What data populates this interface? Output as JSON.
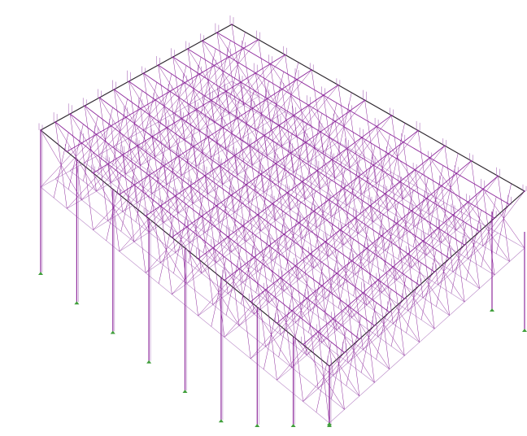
{
  "view": {
    "type": "3d-space-frame-isometric",
    "colors": {
      "background": "#ffffff",
      "member": "#8e2a9c",
      "member_light": "#b887c6",
      "load_arrow": "#9a4fae",
      "support": "#3f9e3a",
      "frame_edge": "#2b2b2b"
    },
    "roof_grid": {
      "rows": 13,
      "cols": 11
    },
    "column_count": {
      "front_left_edge": 9,
      "front_right_edge": 3
    },
    "icons": [
      "support-icon",
      "load-arrow-icon",
      "node-icon"
    ]
  }
}
